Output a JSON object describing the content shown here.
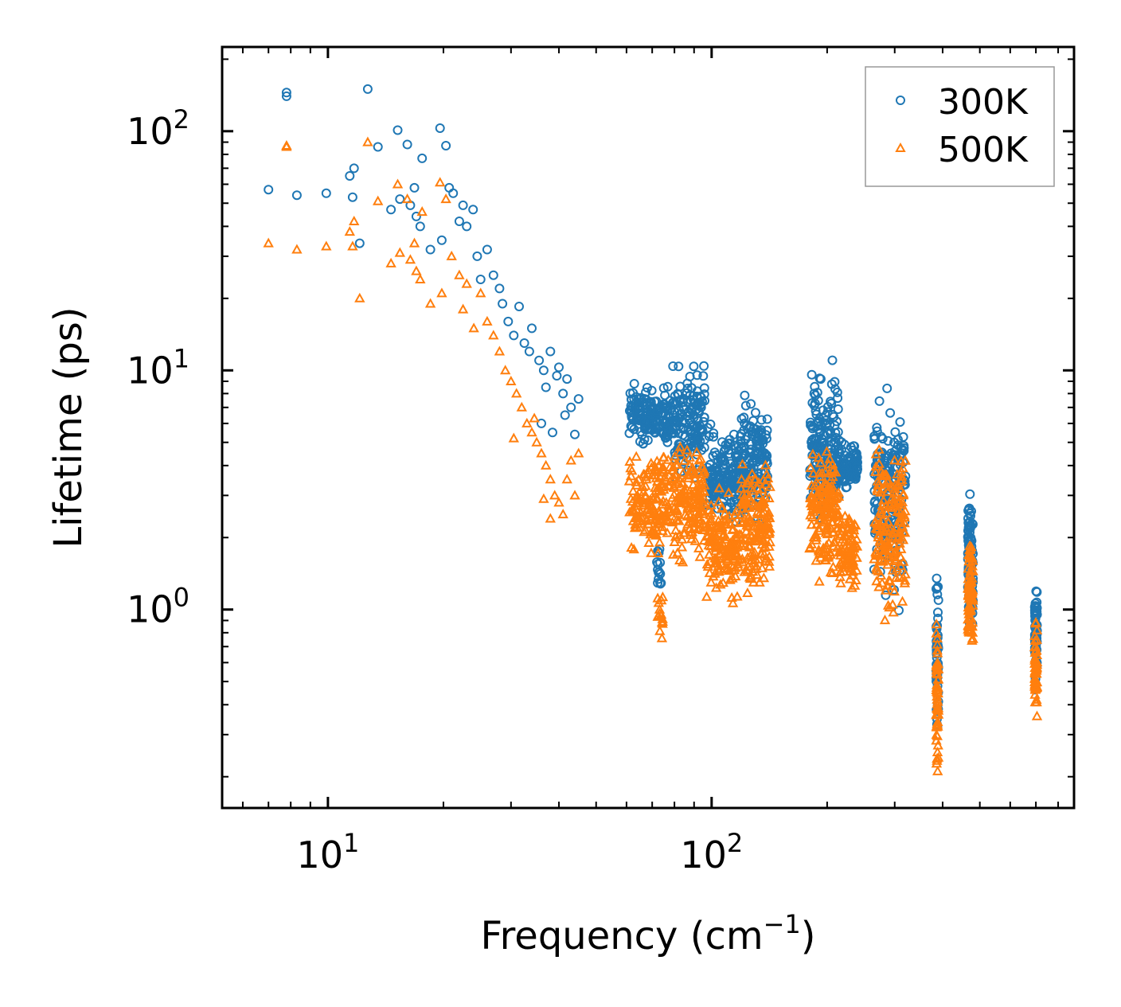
{
  "chart_data": {
    "type": "scatter",
    "title": "",
    "xlabel": "Frequency (cm",
    "xlabel_superscript": "−1",
    "xlabel_suffix": ")",
    "ylabel": "Lifetime (ps)",
    "xscale": "log",
    "yscale": "log",
    "xlim": [
      5.3,
      880
    ],
    "ylim": [
      0.148,
      225
    ],
    "x_ticks": [
      {
        "value": 10,
        "base": "10",
        "exp": "1"
      },
      {
        "value": 100,
        "base": "10",
        "exp": "2"
      }
    ],
    "y_ticks": [
      {
        "value": 1,
        "base": "10",
        "exp": "0"
      },
      {
        "value": 10,
        "base": "10",
        "exp": "1"
      },
      {
        "value": 100,
        "base": "10",
        "exp": "2"
      }
    ],
    "legend_position": "top-right",
    "series": [
      {
        "name": "300K",
        "marker": "circle",
        "color": "#1f77b4",
        "points": [
          [
            7.0,
            57
          ],
          [
            7.8,
            145
          ],
          [
            7.8,
            140
          ],
          [
            8.3,
            54
          ],
          [
            9.9,
            55
          ],
          [
            11.4,
            65
          ],
          [
            11.6,
            53
          ],
          [
            11.7,
            70
          ],
          [
            12.1,
            34
          ],
          [
            12.7,
            150
          ],
          [
            13.5,
            86
          ],
          [
            14.6,
            47
          ],
          [
            15.2,
            101
          ],
          [
            15.4,
            52
          ],
          [
            16.1,
            88
          ],
          [
            16.4,
            49
          ],
          [
            16.8,
            58
          ],
          [
            17.0,
            44
          ],
          [
            17.4,
            40
          ],
          [
            17.6,
            77
          ],
          [
            18.5,
            32
          ],
          [
            19.6,
            103
          ],
          [
            19.8,
            35
          ],
          [
            20.3,
            87
          ],
          [
            20.7,
            58
          ],
          [
            21.2,
            55
          ],
          [
            22.0,
            42
          ],
          [
            22.5,
            49
          ],
          [
            23.0,
            40
          ],
          [
            23.9,
            47
          ],
          [
            24.5,
            30
          ],
          [
            25.0,
            24
          ],
          [
            26.0,
            32
          ],
          [
            27.0,
            25
          ],
          [
            28.0,
            22
          ],
          [
            28.5,
            19
          ],
          [
            29.5,
            16
          ],
          [
            30.5,
            14
          ],
          [
            31.5,
            18.5
          ],
          [
            32.5,
            13
          ],
          [
            33.5,
            12
          ],
          [
            34.0,
            15
          ],
          [
            35.5,
            11
          ],
          [
            36.5,
            10
          ],
          [
            37.0,
            8.5
          ],
          [
            38.0,
            12
          ],
          [
            39.5,
            9.5
          ],
          [
            40.0,
            10.3
          ],
          [
            41.0,
            8.0
          ],
          [
            42.0,
            9.2
          ],
          [
            43.0,
            7.0
          ],
          [
            44.0,
            5.4
          ],
          [
            45.0,
            7.6
          ],
          [
            36.0,
            6.0
          ],
          [
            38.5,
            5.5
          ],
          [
            41.5,
            6.5
          ]
        ],
        "bands": [
          {
            "x": [
              61,
              78
            ],
            "y": [
              4.5,
              9.3
            ],
            "n": 160
          },
          {
            "x": [
              79,
              96
            ],
            "y": [
              3.0,
              12.0
            ],
            "n": 160
          },
          {
            "x": [
              97,
              118
            ],
            "y": [
              2.0,
              6.5
            ],
            "n": 150
          },
          {
            "x": [
              118,
              140
            ],
            "y": [
              2.0,
              9.0
            ],
            "n": 160
          },
          {
            "x": [
              72,
              74
            ],
            "y": [
              1.1,
              2.0
            ],
            "n": 15
          },
          {
            "x": [
              180,
              215
            ],
            "y": [
              2.0,
              12.0
            ],
            "n": 170
          },
          {
            "x": [
              215,
              240
            ],
            "y": [
              3.0,
              5.2
            ],
            "n": 90
          },
          {
            "x": [
              265,
              320
            ],
            "y": [
              0.9,
              10.0
            ],
            "n": 170
          },
          {
            "x": [
              385,
              390
            ],
            "y": [
              0.2,
              1.7
            ],
            "n": 60
          },
          {
            "x": [
              465,
              480
            ],
            "y": [
              0.6,
              4.0
            ],
            "n": 90
          },
          {
            "x": [
              695,
              705
            ],
            "y": [
              0.4,
              1.5
            ],
            "n": 60
          }
        ]
      },
      {
        "name": "500K",
        "marker": "triangle",
        "color": "#ff7f0e",
        "points": [
          [
            7.0,
            34
          ],
          [
            7.8,
            87
          ],
          [
            7.8,
            86
          ],
          [
            8.3,
            32
          ],
          [
            9.9,
            33
          ],
          [
            11.4,
            38
          ],
          [
            11.6,
            33
          ],
          [
            11.7,
            42
          ],
          [
            12.1,
            20
          ],
          [
            12.7,
            90
          ],
          [
            13.5,
            51
          ],
          [
            14.6,
            28
          ],
          [
            15.2,
            60
          ],
          [
            15.4,
            31
          ],
          [
            16.1,
            52
          ],
          [
            16.4,
            29
          ],
          [
            16.8,
            34
          ],
          [
            17.0,
            26
          ],
          [
            17.4,
            24
          ],
          [
            17.6,
            46
          ],
          [
            18.5,
            19
          ],
          [
            19.6,
            61
          ],
          [
            19.8,
            21
          ],
          [
            20.3,
            52
          ],
          [
            21.0,
            30
          ],
          [
            22.0,
            25
          ],
          [
            22.5,
            18
          ],
          [
            23.0,
            23
          ],
          [
            24.0,
            15
          ],
          [
            25.0,
            21
          ],
          [
            26.0,
            16
          ],
          [
            27.0,
            14
          ],
          [
            28.0,
            12
          ],
          [
            29.0,
            10
          ],
          [
            30.0,
            9
          ],
          [
            31.0,
            8
          ],
          [
            32.0,
            7
          ],
          [
            33.0,
            6
          ],
          [
            34.0,
            5.5
          ],
          [
            35.0,
            5
          ],
          [
            36.0,
            4.5
          ],
          [
            37.0,
            4.0
          ],
          [
            38.0,
            3.5
          ],
          [
            39.0,
            3.0
          ],
          [
            40.0,
            2.8
          ],
          [
            41.0,
            2.5
          ],
          [
            42.0,
            3.5
          ],
          [
            43.0,
            4.2
          ],
          [
            44.0,
            3.0
          ],
          [
            45.0,
            4.5
          ],
          [
            38.0,
            2.4
          ],
          [
            36.5,
            2.9
          ],
          [
            30.5,
            5.2
          ],
          [
            34.5,
            6.3
          ]
        ],
        "bands": [
          {
            "x": [
              61,
              78
            ],
            "y": [
              1.5,
              5.5
            ],
            "n": 160
          },
          {
            "x": [
              79,
              96
            ],
            "y": [
              1.4,
              5.6
            ],
            "n": 160
          },
          {
            "x": [
              97,
              118
            ],
            "y": [
              1.0,
              3.4
            ],
            "n": 150
          },
          {
            "x": [
              118,
              142
            ],
            "y": [
              0.95,
              5.0
            ],
            "n": 160
          },
          {
            "x": [
              72,
              75
            ],
            "y": [
              0.7,
              1.3
            ],
            "n": 15
          },
          {
            "x": [
              180,
              215
            ],
            "y": [
              1.2,
              5.5
            ],
            "n": 170
          },
          {
            "x": [
              215,
              240
            ],
            "y": [
              1.1,
              2.8
            ],
            "n": 90
          },
          {
            "x": [
              265,
              320
            ],
            "y": [
              0.7,
              6.5
            ],
            "n": 170
          },
          {
            "x": [
              385,
              390
            ],
            "y": [
              0.19,
              0.95
            ],
            "n": 60
          },
          {
            "x": [
              465,
              480
            ],
            "y": [
              0.58,
              2.3
            ],
            "n": 90
          },
          {
            "x": [
              695,
              705
            ],
            "y": [
              0.3,
              1.1
            ],
            "n": 60
          }
        ]
      }
    ]
  }
}
